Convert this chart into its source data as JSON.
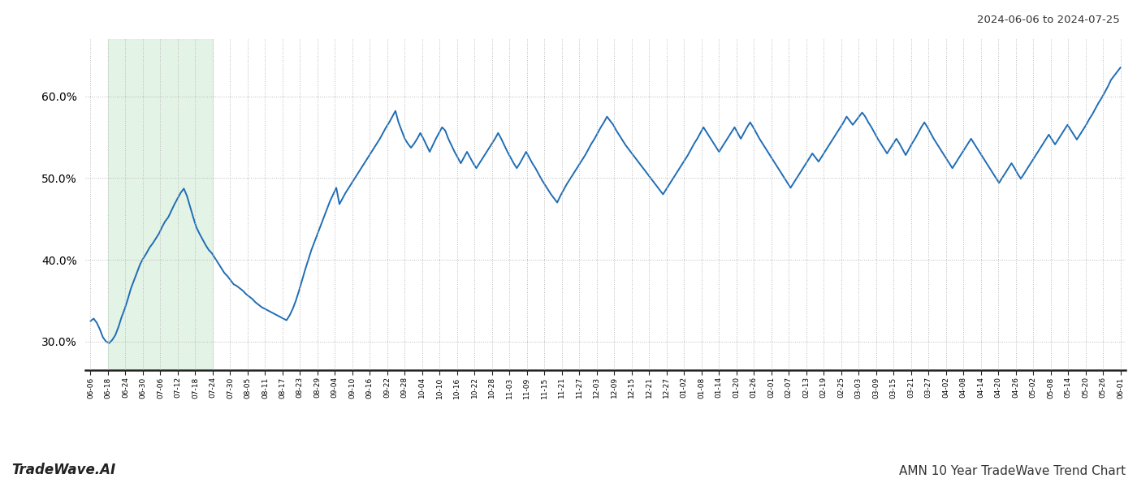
{
  "title_right": "2024-06-06 to 2024-07-25",
  "footer_left": "TradeWave.AI",
  "footer_right": "AMN 10 Year TradeWave Trend Chart",
  "y_ticks": [
    0.3,
    0.4,
    0.5,
    0.6
  ],
  "y_tick_labels": [
    "30.0%",
    "40.0%",
    "50.0%",
    "60.0%"
  ],
  "ylim": [
    0.265,
    0.67
  ],
  "line_color": "#1f6db5",
  "bg_color": "#ffffff",
  "highlight_color": "#d4edda",
  "highlight_alpha": 0.65,
  "grid_color": "#bbbbbb",
  "grid_style": ":",
  "x_labels": [
    "06-06",
    "06-18",
    "06-24",
    "06-30",
    "07-06",
    "07-12",
    "07-18",
    "07-24",
    "07-30",
    "08-05",
    "08-11",
    "08-17",
    "08-23",
    "08-29",
    "09-04",
    "09-10",
    "09-16",
    "09-22",
    "09-28",
    "10-04",
    "10-10",
    "10-16",
    "10-22",
    "10-28",
    "11-03",
    "11-09",
    "11-15",
    "11-21",
    "11-27",
    "12-03",
    "12-09",
    "12-15",
    "12-21",
    "12-27",
    "01-02",
    "01-08",
    "01-14",
    "01-20",
    "01-26",
    "02-01",
    "02-07",
    "02-13",
    "02-19",
    "02-25",
    "03-03",
    "03-09",
    "03-15",
    "03-21",
    "03-27",
    "04-02",
    "04-08",
    "04-14",
    "04-20",
    "04-26",
    "05-02",
    "05-08",
    "05-14",
    "05-20",
    "05-26",
    "06-01"
  ],
  "highlight_start_label": "06-18",
  "highlight_end_label": "07-24",
  "line_width": 1.4,
  "y_values": [
    0.325,
    0.328,
    0.323,
    0.315,
    0.305,
    0.3,
    0.298,
    0.302,
    0.308,
    0.318,
    0.33,
    0.34,
    0.352,
    0.365,
    0.375,
    0.385,
    0.395,
    0.402,
    0.408,
    0.415,
    0.42,
    0.426,
    0.432,
    0.44,
    0.447,
    0.452,
    0.46,
    0.468,
    0.475,
    0.482,
    0.487,
    0.478,
    0.465,
    0.452,
    0.44,
    0.432,
    0.425,
    0.418,
    0.412,
    0.408,
    0.402,
    0.396,
    0.39,
    0.384,
    0.38,
    0.375,
    0.37,
    0.368,
    0.365,
    0.362,
    0.358,
    0.355,
    0.352,
    0.348,
    0.345,
    0.342,
    0.34,
    0.338,
    0.336,
    0.334,
    0.332,
    0.33,
    0.328,
    0.326,
    0.332,
    0.34,
    0.35,
    0.362,
    0.375,
    0.388,
    0.4,
    0.412,
    0.422,
    0.432,
    0.442,
    0.452,
    0.462,
    0.472,
    0.48,
    0.488,
    0.468,
    0.475,
    0.482,
    0.488,
    0.494,
    0.5,
    0.506,
    0.512,
    0.518,
    0.524,
    0.53,
    0.536,
    0.542,
    0.548,
    0.555,
    0.562,
    0.568,
    0.575,
    0.582,
    0.568,
    0.558,
    0.548,
    0.542,
    0.537,
    0.542,
    0.548,
    0.555,
    0.548,
    0.54,
    0.532,
    0.54,
    0.548,
    0.555,
    0.562,
    0.558,
    0.548,
    0.54,
    0.532,
    0.525,
    0.518,
    0.525,
    0.532,
    0.525,
    0.518,
    0.512,
    0.518,
    0.524,
    0.53,
    0.536,
    0.542,
    0.548,
    0.555,
    0.548,
    0.54,
    0.532,
    0.525,
    0.518,
    0.512,
    0.518,
    0.525,
    0.532,
    0.525,
    0.518,
    0.512,
    0.505,
    0.498,
    0.492,
    0.486,
    0.48,
    0.475,
    0.47,
    0.478,
    0.485,
    0.492,
    0.498,
    0.504,
    0.51,
    0.516,
    0.522,
    0.528,
    0.535,
    0.542,
    0.548,
    0.555,
    0.562,
    0.568,
    0.575,
    0.57,
    0.565,
    0.558,
    0.552,
    0.546,
    0.54,
    0.535,
    0.53,
    0.525,
    0.52,
    0.515,
    0.51,
    0.505,
    0.5,
    0.495,
    0.49,
    0.485,
    0.48,
    0.486,
    0.492,
    0.498,
    0.504,
    0.51,
    0.516,
    0.522,
    0.528,
    0.535,
    0.542,
    0.548,
    0.555,
    0.562,
    0.556,
    0.55,
    0.544,
    0.538,
    0.532,
    0.538,
    0.544,
    0.55,
    0.556,
    0.562,
    0.555,
    0.548,
    0.555,
    0.562,
    0.568,
    0.562,
    0.555,
    0.548,
    0.542,
    0.536,
    0.53,
    0.524,
    0.518,
    0.512,
    0.506,
    0.5,
    0.494,
    0.488,
    0.494,
    0.5,
    0.506,
    0.512,
    0.518,
    0.524,
    0.53,
    0.525,
    0.52,
    0.526,
    0.532,
    0.538,
    0.544,
    0.55,
    0.556,
    0.562,
    0.568,
    0.575,
    0.57,
    0.565,
    0.57,
    0.575,
    0.58,
    0.575,
    0.568,
    0.562,
    0.555,
    0.548,
    0.542,
    0.536,
    0.53,
    0.536,
    0.542,
    0.548,
    0.542,
    0.535,
    0.528,
    0.535,
    0.542,
    0.548,
    0.555,
    0.562,
    0.568,
    0.562,
    0.555,
    0.548,
    0.542,
    0.536,
    0.53,
    0.524,
    0.518,
    0.512,
    0.518,
    0.524,
    0.53,
    0.536,
    0.542,
    0.548,
    0.542,
    0.536,
    0.53,
    0.524,
    0.518,
    0.512,
    0.506,
    0.5,
    0.494,
    0.5,
    0.506,
    0.512,
    0.518,
    0.512,
    0.505,
    0.499,
    0.505,
    0.511,
    0.517,
    0.523,
    0.529,
    0.535,
    0.541,
    0.547,
    0.553,
    0.547,
    0.541,
    0.547,
    0.553,
    0.559,
    0.565,
    0.559,
    0.553,
    0.547,
    0.553,
    0.559,
    0.565,
    0.572,
    0.578,
    0.585,
    0.592,
    0.598,
    0.605,
    0.612,
    0.62,
    0.625,
    0.63,
    0.635
  ]
}
